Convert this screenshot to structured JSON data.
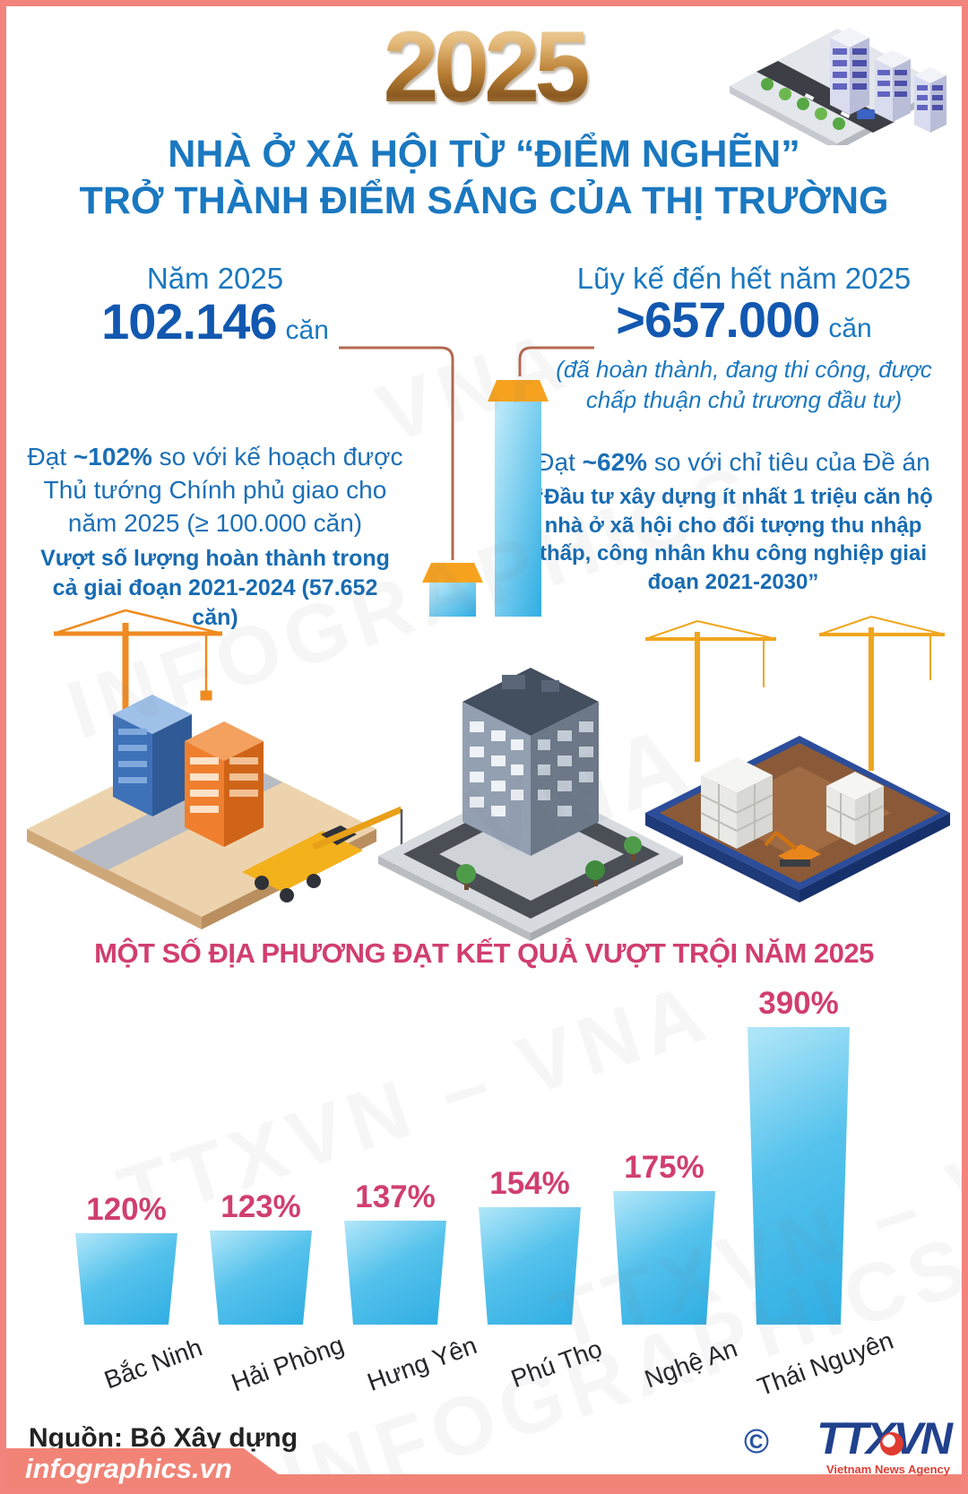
{
  "header": {
    "year": "2025",
    "title_line1": "NHÀ Ở XÃ HỘI TỪ “ĐIỂM NGHẼN”",
    "title_line2": "TRỞ THÀNH ĐIỂM SÁNG CỦA THỊ TRƯỜNG"
  },
  "stats": {
    "left": {
      "label": "Năm 2025",
      "value": "102.146",
      "unit": "căn",
      "desc_prefix": "Đạt ",
      "desc_bold": "~102%",
      "desc_rest": " so với kế hoạch được Thủ tướng Chính phủ giao cho năm 2025 (≥ 100.000 căn)",
      "highlight": "Vượt số lượng hoàn thành trong cả giai đoạn 2021-2024 (57.652 căn)"
    },
    "right": {
      "label": "Lũy kế đến hết năm 2025",
      "value": ">657.000",
      "unit": "căn",
      "note": "(đã hoàn thành, đang thi công, được chấp thuận chủ trương đầu tư)",
      "desc_prefix": "Đạt ",
      "desc_bold": "~62%",
      "desc_rest": " so với chỉ tiêu của Đề án",
      "highlight": "“Đầu tư xây dựng ít nhất 1 triệu căn hộ nhà ở xã hội cho đối tượng thu nhập thấp, công nhân khu công nghiệp giai đoạn 2021-2030”"
    }
  },
  "chart_data": {
    "type": "bar",
    "title": "MỘT SỐ ĐỊA PHƯƠNG ĐẠT KẾT QUẢ VƯỢT TRỘI NĂM 2025",
    "categories": [
      "Bắc Ninh",
      "Hải Phòng",
      "Hưng Yên",
      "Phú Thọ",
      "Nghệ An",
      "Thái Nguyên"
    ],
    "values": [
      120,
      123,
      137,
      154,
      175,
      390
    ],
    "value_labels": [
      "120%",
      "123%",
      "137%",
      "154%",
      "175%",
      "390%"
    ],
    "ylim": [
      0,
      400
    ],
    "grid": false,
    "legend": "none",
    "bar_color": "#2fade3",
    "label_color": "#d13e6f"
  },
  "footer": {
    "source": "Nguồn: Bộ Xây dựng",
    "site": "infographics.vn",
    "copyright": "©",
    "agency": "TTXVN",
    "agency_sub": "Vietnam News Agency"
  },
  "watermarks": {
    "w1": "INFOGRAPHICS",
    "w2": "TTXVN – VNA",
    "w3": "VNA",
    "w4": "INFOGRAPHICS",
    "w5": "TTXVN – VNA",
    "w6": "VNA"
  },
  "colors": {
    "accent_blue": "#1a78c0",
    "number_blue": "#1258b0",
    "pink": "#d13e6f",
    "bar_blue": "#2fade3",
    "cap_orange": "#f6a21e",
    "salmon": "#f18477"
  }
}
